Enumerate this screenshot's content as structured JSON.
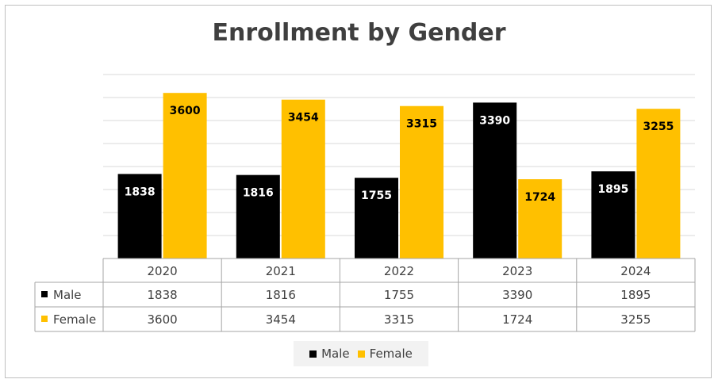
{
  "chart_data": {
    "type": "bar",
    "title": "Enrollment by Gender",
    "categories": [
      "2020",
      "2021",
      "2022",
      "2023",
      "2024"
    ],
    "series": [
      {
        "name": "Male",
        "color": "#000000",
        "values": [
          1838,
          1816,
          1755,
          3390,
          1895
        ]
      },
      {
        "name": "Female",
        "color": "#ffc000",
        "values": [
          3600,
          3454,
          3315,
          1724,
          3255
        ]
      }
    ],
    "ylim": [
      0,
      4000
    ],
    "grid": true,
    "data_labels": true,
    "data_table": true,
    "legend": "bottom"
  }
}
